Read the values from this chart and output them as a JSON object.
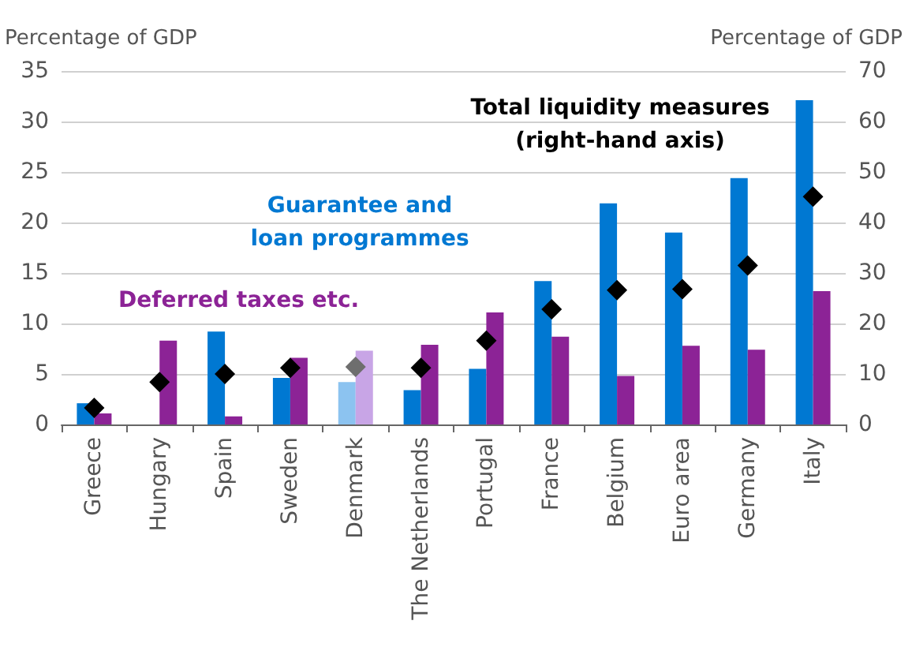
{
  "chart_data": {
    "type": "bar",
    "ylabel": "Percentage of GDP",
    "y2label": "Percentage of GDP",
    "categories": [
      "Greece",
      "Hungary",
      "Spain",
      "Sweden",
      "Denmark",
      "The Netherlands",
      "Portugal",
      "France",
      "Belgium",
      "Euro area",
      "Germany",
      "Italy"
    ],
    "series": [
      {
        "name": "Guarantee and\nloan programmes",
        "color": "#0078d2",
        "colors": [
          "#0078d2",
          "#0078d2",
          "#0078d2",
          "#0078d2",
          "#8cc3f0",
          "#0078d2",
          "#0078d2",
          "#0078d2",
          "#0078d2",
          "#0078d2",
          "#0078d2",
          "#0078d2"
        ],
        "values": [
          2.1,
          null,
          9.2,
          4.6,
          4.2,
          3.4,
          5.5,
          14.2,
          21.9,
          19.0,
          24.4,
          32.1
        ]
      },
      {
        "name": "Deferred taxes etc.",
        "color": "#8c2396",
        "colors": [
          "#8c2396",
          "#8c2396",
          "#8c2396",
          "#8c2396",
          "#c8a5e6",
          "#8c2396",
          "#8c2396",
          "#8c2396",
          "#8c2396",
          "#8c2396",
          "#8c2396",
          "#8c2396"
        ],
        "values": [
          1.1,
          8.3,
          0.8,
          6.6,
          7.3,
          7.9,
          11.1,
          8.7,
          4.8,
          7.8,
          7.4,
          13.2
        ]
      },
      {
        "name": "Total liquidity measures\n(right-hand axis)",
        "type": "scatter",
        "axis": "y2",
        "marker": "diamond",
        "color": "#000000",
        "colors": [
          "#000000",
          "#000000",
          "#000000",
          "#000000",
          "#6e6e6e",
          "#000000",
          "#000000",
          "#000000",
          "#000000",
          "#000000",
          "#000000",
          "#000000"
        ],
        "values": [
          3.3,
          8.4,
          10.0,
          11.2,
          11.4,
          11.2,
          16.6,
          22.8,
          26.6,
          26.8,
          31.5,
          45.1
        ]
      }
    ],
    "ylim": [
      0,
      35
    ],
    "yticks": [
      0,
      5,
      10,
      15,
      20,
      25,
      30,
      35
    ],
    "y2lim": [
      0,
      70
    ],
    "y2ticks": [
      0,
      10,
      20,
      30,
      40,
      50,
      60,
      70
    ],
    "grid": "y"
  }
}
